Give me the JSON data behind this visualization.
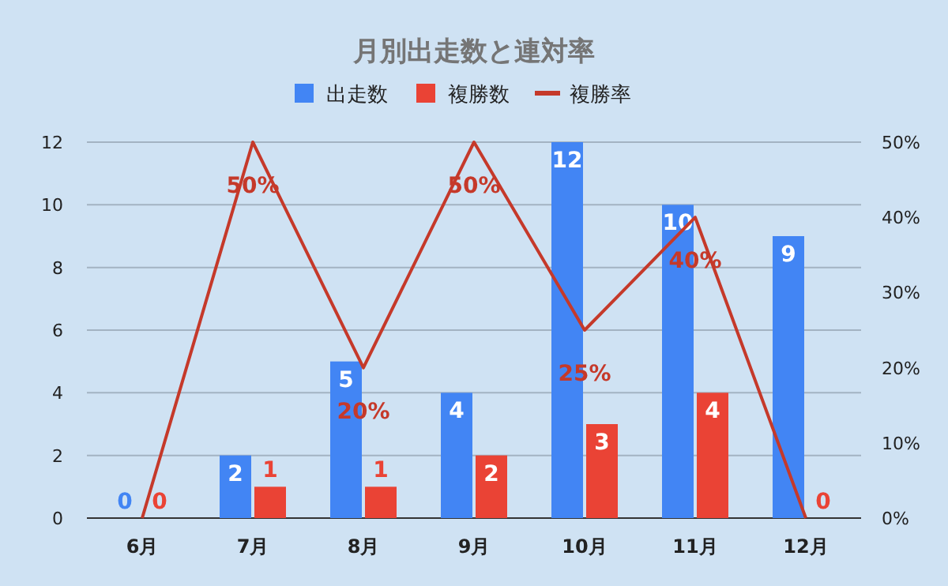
{
  "chart_data": {
    "type": "bar",
    "title": "月別出走数と連対率",
    "categories": [
      "6月",
      "7月",
      "8月",
      "9月",
      "10月",
      "11月",
      "12月"
    ],
    "series": [
      {
        "name": "出走数",
        "color": "#4285f4",
        "values": [
          0,
          2,
          5,
          4,
          12,
          10,
          9
        ]
      },
      {
        "name": "複勝数",
        "color": "#ea4335",
        "values": [
          0,
          1,
          1,
          2,
          3,
          4,
          0
        ]
      },
      {
        "name": "複勝率",
        "type": "line",
        "axis": "y2",
        "color": "#c5392a",
        "values": [
          0,
          50,
          20,
          50,
          25,
          40,
          0
        ],
        "value_labels": [
          null,
          "50%",
          "20%",
          "50%",
          "25%",
          "40%",
          null
        ]
      }
    ],
    "ylim": [
      0,
      12
    ],
    "yticks": [
      0,
      2,
      4,
      6,
      8,
      10,
      12
    ],
    "y2lim": [
      0,
      50
    ],
    "y2ticks": [
      {
        "value": 0,
        "label": "0%"
      },
      {
        "value": 10,
        "label": "10%"
      },
      {
        "value": 20,
        "label": "20%"
      },
      {
        "value": 30,
        "label": "30%"
      },
      {
        "value": 40,
        "label": "40%"
      },
      {
        "value": 50,
        "label": "50%"
      }
    ],
    "grid": "y",
    "legend": "top",
    "data_labels": true
  }
}
